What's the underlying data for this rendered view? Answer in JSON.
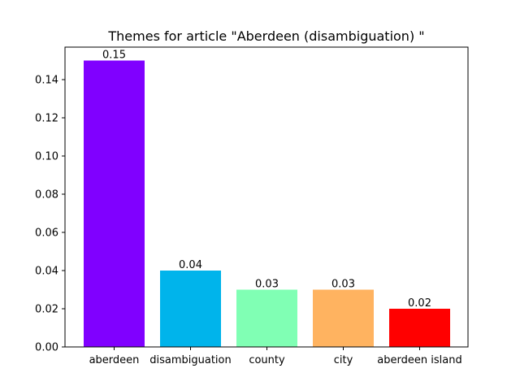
{
  "chart_data": {
    "type": "bar",
    "title": "Themes for article \"Aberdeen (disambiguation) \"",
    "xlabel": "",
    "ylabel": "",
    "categories": [
      "aberdeen",
      "disambiguation",
      "county",
      "city",
      "aberdeen island"
    ],
    "values": [
      0.15,
      0.04,
      0.03,
      0.03,
      0.02
    ],
    "value_labels": [
      "0.15",
      "0.04",
      "0.03",
      "0.03",
      "0.02"
    ],
    "colors": [
      "#8000ff",
      "#00b4eb",
      "#80ffb4",
      "#ffb360",
      "#ff0000"
    ],
    "ylim": [
      0,
      0.157
    ],
    "yticks": [
      0.0,
      0.02,
      0.04,
      0.06,
      0.08,
      0.1,
      0.12,
      0.14
    ],
    "ytick_labels": [
      "0.00",
      "0.02",
      "0.04",
      "0.06",
      "0.08",
      "0.10",
      "0.12",
      "0.14"
    ],
    "grid": false,
    "legend": "none"
  }
}
